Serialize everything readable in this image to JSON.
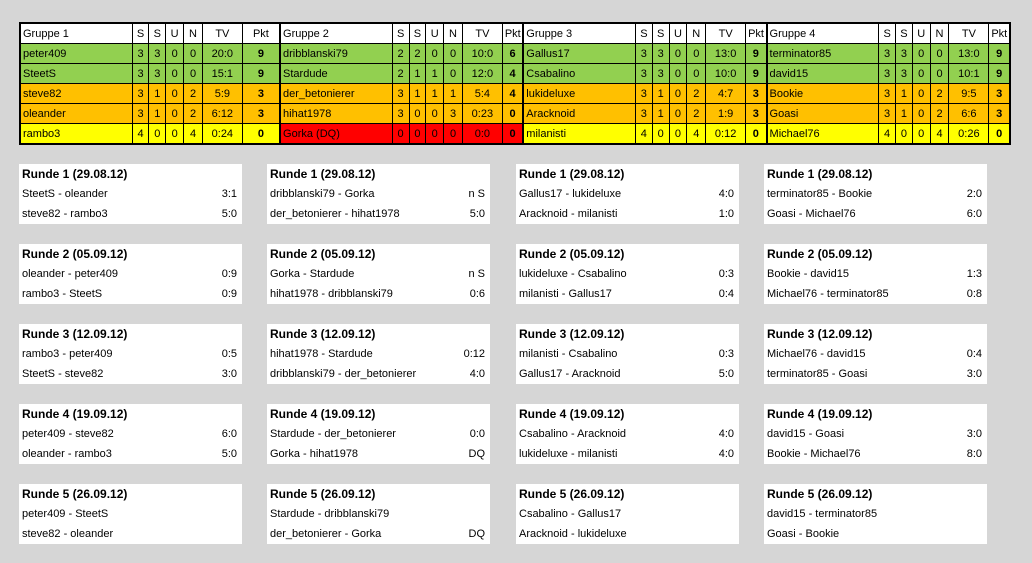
{
  "colors": {
    "green": "#92d050",
    "orange": "#ffc000",
    "yellow": "#ffff00",
    "red": "#ff0000",
    "white": "#ffffff"
  },
  "groups": [
    {
      "name": "Gruppe 1",
      "cols": [
        "S",
        "S",
        "U",
        "N",
        "TV",
        "Pkt"
      ],
      "rows": [
        {
          "player": "peter409",
          "s1": "3",
          "s2": "3",
          "u": "0",
          "n": "0",
          "tv": "20:0",
          "pkt": "9",
          "status": "green"
        },
        {
          "player": "SteetS",
          "s1": "3",
          "s2": "3",
          "u": "0",
          "n": "0",
          "tv": "15:1",
          "pkt": "9",
          "status": "green"
        },
        {
          "player": "steve82",
          "s1": "3",
          "s2": "1",
          "u": "0",
          "n": "2",
          "tv": "5:9",
          "pkt": "3",
          "status": "orange"
        },
        {
          "player": "oleander",
          "s1": "3",
          "s2": "1",
          "u": "0",
          "n": "2",
          "tv": "6:12",
          "pkt": "3",
          "status": "orange"
        },
        {
          "player": "rambo3",
          "s1": "4",
          "s2": "0",
          "u": "0",
          "n": "4",
          "tv": "0:24",
          "pkt": "0",
          "status": "yellow"
        }
      ]
    },
    {
      "name": "Gruppe 2",
      "cols": [
        "S",
        "S",
        "U",
        "N",
        "TV",
        "Pkt"
      ],
      "rows": [
        {
          "player": "dribblanski79",
          "s1": "2",
          "s2": "2",
          "u": "0",
          "n": "0",
          "tv": "10:0",
          "pkt": "6",
          "status": "green"
        },
        {
          "player": "Stardude",
          "s1": "2",
          "s2": "1",
          "u": "1",
          "n": "0",
          "tv": "12:0",
          "pkt": "4",
          "status": "green"
        },
        {
          "player": "der_betonierer",
          "s1": "3",
          "s2": "1",
          "u": "1",
          "n": "1",
          "tv": "5:4",
          "pkt": "4",
          "status": "orange"
        },
        {
          "player": "hihat1978",
          "s1": "3",
          "s2": "0",
          "u": "0",
          "n": "3",
          "tv": "0:23",
          "pkt": "0",
          "status": "orange"
        },
        {
          "player": "Gorka (DQ)",
          "s1": "0",
          "s2": "0",
          "u": "0",
          "n": "0",
          "tv": "0:0",
          "pkt": "0",
          "status": "red"
        }
      ]
    },
    {
      "name": "Gruppe 3",
      "cols": [
        "S",
        "S",
        "U",
        "N",
        "TV",
        "Pkt"
      ],
      "rows": [
        {
          "player": "Gallus17",
          "s1": "3",
          "s2": "3",
          "u": "0",
          "n": "0",
          "tv": "13:0",
          "pkt": "9",
          "status": "green"
        },
        {
          "player": "Csabalino",
          "s1": "3",
          "s2": "3",
          "u": "0",
          "n": "0",
          "tv": "10:0",
          "pkt": "9",
          "status": "green"
        },
        {
          "player": "lukideluxe",
          "s1": "3",
          "s2": "1",
          "u": "0",
          "n": "2",
          "tv": "4:7",
          "pkt": "3",
          "status": "orange"
        },
        {
          "player": "Aracknoid",
          "s1": "3",
          "s2": "1",
          "u": "0",
          "n": "2",
          "tv": "1:9",
          "pkt": "3",
          "status": "orange"
        },
        {
          "player": "milanisti",
          "s1": "4",
          "s2": "0",
          "u": "0",
          "n": "4",
          "tv": "0:12",
          "pkt": "0",
          "status": "yellow"
        }
      ]
    },
    {
      "name": "Gruppe 4",
      "cols": [
        "S",
        "S",
        "U",
        "N",
        "TV",
        "Pkt"
      ],
      "rows": [
        {
          "player": "terminator85",
          "s1": "3",
          "s2": "3",
          "u": "0",
          "n": "0",
          "tv": "13:0",
          "pkt": "9",
          "status": "green"
        },
        {
          "player": "david15",
          "s1": "3",
          "s2": "3",
          "u": "0",
          "n": "0",
          "tv": "10:1",
          "pkt": "9",
          "status": "green"
        },
        {
          "player": "Bookie",
          "s1": "3",
          "s2": "1",
          "u": "0",
          "n": "2",
          "tv": "9:5",
          "pkt": "3",
          "status": "orange"
        },
        {
          "player": "Goasi",
          "s1": "3",
          "s2": "1",
          "u": "0",
          "n": "2",
          "tv": "6:6",
          "pkt": "3",
          "status": "orange"
        },
        {
          "player": "Michael76",
          "s1": "4",
          "s2": "0",
          "u": "0",
          "n": "4",
          "tv": "0:26",
          "pkt": "0",
          "status": "yellow"
        }
      ]
    }
  ],
  "rounds": [
    [
      {
        "title": "Runde 1 (29.08.12)",
        "matches": [
          {
            "pair": "SteetS - oleander",
            "result": "3:1"
          },
          {
            "pair": "steve82 - rambo3",
            "result": "5:0"
          }
        ]
      },
      {
        "title": "Runde 2 (05.09.12)",
        "matches": [
          {
            "pair": "oleander - peter409",
            "result": "0:9"
          },
          {
            "pair": "rambo3 - SteetS",
            "result": "0:9"
          }
        ]
      },
      {
        "title": "Runde 3 (12.09.12)",
        "matches": [
          {
            "pair": "rambo3 - peter409",
            "result": "0:5"
          },
          {
            "pair": "SteetS - steve82",
            "result": "3:0"
          }
        ]
      },
      {
        "title": "Runde 4 (19.09.12)",
        "matches": [
          {
            "pair": "peter409 - steve82",
            "result": "6:0"
          },
          {
            "pair": "oleander - rambo3",
            "result": "5:0"
          }
        ]
      },
      {
        "title": "Runde 5 (26.09.12)",
        "matches": [
          {
            "pair": "peter409 - SteetS",
            "result": ""
          },
          {
            "pair": "steve82 - oleander",
            "result": ""
          }
        ]
      }
    ],
    [
      {
        "title": "Runde 1 (29.08.12)",
        "matches": [
          {
            "pair": "dribblanski79 - Gorka",
            "result": "n S"
          },
          {
            "pair": "der_betonierer - hihat1978",
            "result": "5:0"
          }
        ]
      },
      {
        "title": "Runde 2 (05.09.12)",
        "matches": [
          {
            "pair": "Gorka - Stardude",
            "result": "n S"
          },
          {
            "pair": "hihat1978 - dribblanski79",
            "result": "0:6"
          }
        ]
      },
      {
        "title": "Runde 3 (12.09.12)",
        "matches": [
          {
            "pair": "hihat1978 - Stardude",
            "result": "0:12"
          },
          {
            "pair": "dribblanski79 - der_betonierer",
            "result": "4:0"
          }
        ]
      },
      {
        "title": "Runde 4 (19.09.12)",
        "matches": [
          {
            "pair": "Stardude - der_betonierer",
            "result": "0:0"
          },
          {
            "pair": "Gorka - hihat1978",
            "result": "DQ"
          }
        ]
      },
      {
        "title": "Runde 5 (26.09.12)",
        "matches": [
          {
            "pair": "Stardude - dribblanski79",
            "result": ""
          },
          {
            "pair": "der_betonierer - Gorka",
            "result": "DQ"
          }
        ]
      }
    ],
    [
      {
        "title": "Runde 1 (29.08.12)",
        "matches": [
          {
            "pair": "Gallus17 - lukideluxe",
            "result": "4:0"
          },
          {
            "pair": "Aracknoid - milanisti",
            "result": "1:0"
          }
        ]
      },
      {
        "title": "Runde 2 (05.09.12)",
        "matches": [
          {
            "pair": "lukideluxe - Csabalino",
            "result": "0:3"
          },
          {
            "pair": "milanisti - Gallus17",
            "result": "0:4"
          }
        ]
      },
      {
        "title": "Runde 3 (12.09.12)",
        "matches": [
          {
            "pair": "milanisti - Csabalino",
            "result": "0:3"
          },
          {
            "pair": "Gallus17 - Aracknoid",
            "result": "5:0"
          }
        ]
      },
      {
        "title": "Runde 4 (19.09.12)",
        "matches": [
          {
            "pair": "Csabalino - Aracknoid",
            "result": "4:0"
          },
          {
            "pair": "lukideluxe - milanisti",
            "result": "4:0"
          }
        ]
      },
      {
        "title": "Runde 5 (26.09.12)",
        "matches": [
          {
            "pair": "Csabalino - Gallus17",
            "result": ""
          },
          {
            "pair": "Aracknoid - lukideluxe",
            "result": ""
          }
        ]
      }
    ],
    [
      {
        "title": "Runde 1 (29.08.12)",
        "matches": [
          {
            "pair": "terminator85 - Bookie",
            "result": "2:0"
          },
          {
            "pair": "Goasi - Michael76",
            "result": "6:0"
          }
        ]
      },
      {
        "title": "Runde 2 (05.09.12)",
        "matches": [
          {
            "pair": "Bookie - david15",
            "result": "1:3"
          },
          {
            "pair": "Michael76 - terminator85",
            "result": "0:8"
          }
        ]
      },
      {
        "title": "Runde 3 (12.09.12)",
        "matches": [
          {
            "pair": "Michael76 - david15",
            "result": "0:4"
          },
          {
            "pair": "terminator85 - Goasi",
            "result": "3:0"
          }
        ]
      },
      {
        "title": "Runde 4 (19.09.12)",
        "matches": [
          {
            "pair": "david15 - Goasi",
            "result": "3:0"
          },
          {
            "pair": "Bookie - Michael76",
            "result": "8:0"
          }
        ]
      },
      {
        "title": "Runde 5 (26.09.12)",
        "matches": [
          {
            "pair": "david15 - terminator85",
            "result": ""
          },
          {
            "pair": "Goasi - Bookie",
            "result": ""
          }
        ]
      }
    ]
  ]
}
